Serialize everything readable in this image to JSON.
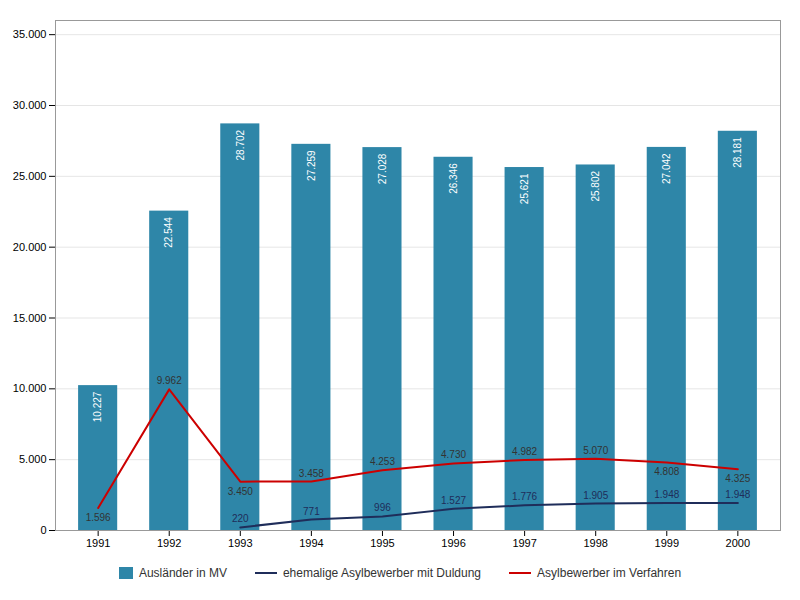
{
  "chart_data": {
    "type": "bar",
    "x": [
      1991,
      1992,
      1993,
      1994,
      1995,
      1996,
      1997,
      1998,
      1999,
      2000
    ],
    "xlim": [
      1990.4,
      2000.6
    ],
    "xticks": [
      1991,
      1992,
      1993,
      1994,
      1995,
      1996,
      1997,
      1998,
      1999,
      2000
    ],
    "ylim": [
      0,
      36000
    ],
    "yticks": [
      0,
      {
        "value": 5000,
        "label": "5.000"
      },
      {
        "value": 10000,
        "label": "10.000"
      },
      {
        "value": 15000,
        "label": "15.000"
      },
      {
        "value": 20000,
        "label": "20.000"
      },
      {
        "value": 25000,
        "label": "25.000"
      },
      {
        "value": 30000,
        "label": "30.000"
      },
      {
        "value": 35000,
        "label": "35.000"
      }
    ],
    "grid": true,
    "legend": "bottom",
    "data_labels": true,
    "series": [
      {
        "name": "Ausländer in MV",
        "type": "bar",
        "color": "#2E86A8",
        "values": [
          10227,
          22544,
          28702,
          27259,
          27028,
          26346,
          25621,
          25802,
          27042,
          28181
        ],
        "value_labels": [
          "10.227",
          "22.544",
          "28.702",
          "27.259",
          "27.028",
          "26.346",
          "25.621",
          "25.802",
          "27.042",
          "28.181"
        ]
      },
      {
        "name": "ehemalige Asylbewerber mit Duldung",
        "type": "line",
        "color": "#1f2d5a",
        "values": [
          null,
          null,
          220,
          771,
          996,
          1527,
          1776,
          1905,
          1948,
          1948
        ],
        "value_labels": [
          null,
          null,
          "220",
          "771",
          "996",
          "1.527",
          "1.776",
          "1.905",
          "1.948",
          "1.948"
        ]
      },
      {
        "name": "Asylbewerber im Verfahren",
        "type": "line",
        "color": "#cc0000",
        "values": [
          1596,
          9962,
          3450,
          3458,
          4253,
          4730,
          4982,
          5070,
          4808,
          4325
        ],
        "value_labels": [
          "1.596",
          "9.962",
          "3.450",
          "3.458",
          "4.253",
          "4.730",
          "4.982",
          "5.070",
          "4.808",
          "4.325"
        ]
      }
    ]
  }
}
